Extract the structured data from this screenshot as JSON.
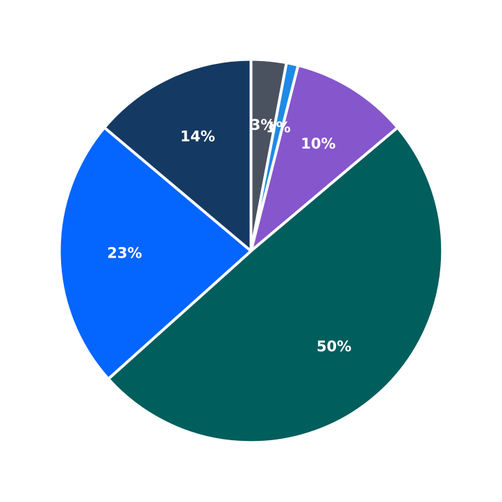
{
  "chart_data": {
    "type": "pie",
    "title": "",
    "start_angle_deg": 90,
    "direction": "clockwise",
    "slices": [
      {
        "value": 3,
        "label": "3%",
        "color": "#4a5260"
      },
      {
        "value": 1,
        "label": "1%",
        "color": "#1e8ae6"
      },
      {
        "value": 10,
        "label": "10%",
        "color": "#8656cc"
      },
      {
        "value": 50,
        "label": "50%",
        "color": "#005e5d"
      },
      {
        "value": 23,
        "label": "23%",
        "color": "#0565ff"
      },
      {
        "value": 14,
        "label": "14%",
        "color": "#143963"
      }
    ]
  }
}
